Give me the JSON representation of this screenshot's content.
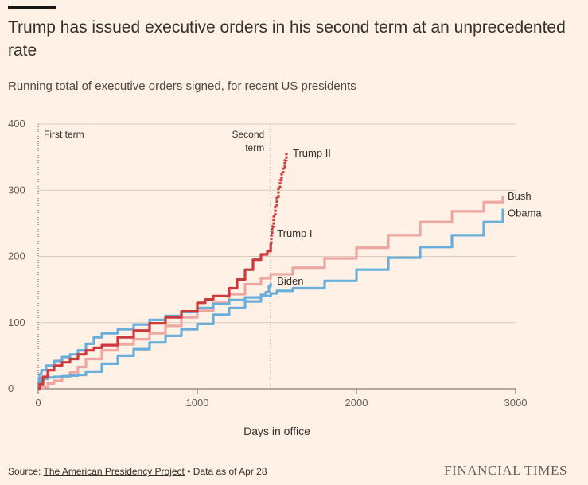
{
  "header": {
    "title": "Trump has issued executive orders in his second term at an unprecedented rate",
    "subtitle": "Running total of executive orders signed, for recent US presidents"
  },
  "footer": {
    "source_prefix": "Source: ",
    "source_link": "The American Presidency Project",
    "source_suffix": " • Data as of Apr 28",
    "brand": "FINANCIAL TIMES"
  },
  "chart_data": {
    "type": "line",
    "title": "Trump has issued executive orders in his second term at an unprecedented rate",
    "subtitle": "Running total of executive orders signed, for recent US presidents",
    "xlabel": "Days in office",
    "ylabel": "",
    "xlim": [
      0,
      3000
    ],
    "ylim": [
      0,
      400
    ],
    "xticks": [
      0,
      1000,
      2000,
      3000
    ],
    "yticks": [
      0,
      100,
      200,
      300,
      400
    ],
    "grid": true,
    "annotations": [
      {
        "text": "First term",
        "x": 0
      },
      {
        "text": "Second term",
        "x": 1461
      }
    ],
    "colors": {
      "Trump": "#cc3a3d",
      "Bush": "#eea6a1",
      "Obama": "#6aafdb",
      "Biden": "#6aafdb",
      "gridline": "#d9ccbe",
      "text": "#33302e"
    },
    "series": [
      {
        "name": "Bush",
        "color": "#eea6a1",
        "x": [
          0,
          30,
          60,
          100,
          150,
          200,
          250,
          300,
          400,
          500,
          600,
          700,
          800,
          900,
          1000,
          1100,
          1200,
          1300,
          1400,
          1461,
          1600,
          1800,
          2000,
          2200,
          2400,
          2600,
          2800,
          2920
        ],
        "y": [
          0,
          3,
          8,
          12,
          18,
          25,
          33,
          45,
          58,
          67,
          75,
          84,
          95,
          108,
          118,
          130,
          143,
          158,
          167,
          173,
          183,
          197,
          213,
          232,
          252,
          268,
          282,
          292
        ]
      },
      {
        "name": "Obama",
        "color": "#6aafdb",
        "x": [
          0,
          10,
          30,
          60,
          100,
          150,
          200,
          250,
          300,
          400,
          500,
          600,
          700,
          800,
          900,
          1000,
          1100,
          1200,
          1300,
          1400,
          1461,
          1500,
          1600,
          1800,
          2000,
          2200,
          2400,
          2600,
          2800,
          2920
        ],
        "y": [
          0,
          12,
          15,
          17,
          18,
          19,
          20,
          21,
          26,
          38,
          50,
          60,
          70,
          80,
          90,
          98,
          112,
          122,
          132,
          140,
          144,
          148,
          152,
          163,
          180,
          198,
          214,
          232,
          252,
          272
        ]
      },
      {
        "name": "Biden",
        "color": "#6aafdb",
        "x": [
          0,
          2,
          5,
          10,
          20,
          50,
          100,
          150,
          200,
          250,
          300,
          350,
          400,
          500,
          600,
          700,
          800,
          900,
          1000,
          1100,
          1200,
          1300,
          1400,
          1430,
          1450,
          1461
        ],
        "y": [
          0,
          9,
          16,
          22,
          28,
          35,
          42,
          48,
          52,
          58,
          68,
          78,
          84,
          90,
          97,
          104,
          110,
          116,
          122,
          128,
          134,
          138,
          142,
          146,
          155,
          160
        ]
      },
      {
        "name": "Trump I",
        "color": "#cc3a3d",
        "x": [
          0,
          10,
          30,
          60,
          100,
          150,
          200,
          250,
          300,
          350,
          400,
          500,
          600,
          700,
          800,
          900,
          1000,
          1050,
          1100,
          1200,
          1250,
          1300,
          1350,
          1400,
          1440,
          1461
        ],
        "y": [
          0,
          7,
          18,
          28,
          35,
          40,
          45,
          52,
          58,
          62,
          66,
          78,
          88,
          99,
          108,
          117,
          130,
          135,
          140,
          152,
          165,
          180,
          195,
          203,
          208,
          220
        ]
      },
      {
        "name": "Trump II",
        "color": "#cc3a3d",
        "dashed": true,
        "x": [
          1461,
          1465,
          1470,
          1480,
          1490,
          1500,
          1510,
          1520,
          1530,
          1540,
          1550,
          1560
        ],
        "y": [
          220,
          232,
          245,
          260,
          275,
          290,
          303,
          315,
          325,
          335,
          345,
          357
        ]
      }
    ]
  }
}
